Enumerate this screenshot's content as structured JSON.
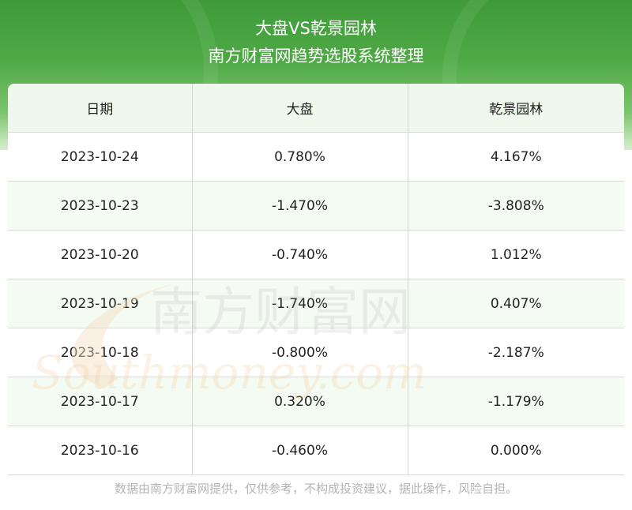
{
  "header": {
    "title": "大盘VS乾景园林",
    "subtitle": "南方财富网趋势选股系统整理"
  },
  "watermark": {
    "cn": "南方财富网",
    "en": "Southmoney.com"
  },
  "footer": "数据由南方财富网提供，仅供参考，不构成投资建议，据此操作，风险自担。",
  "chart_data": {
    "type": "table",
    "columns": [
      "日期",
      "大盘",
      "乾景园林"
    ],
    "rows": [
      [
        "2023-10-24",
        "0.780%",
        "4.167%"
      ],
      [
        "2023-10-23",
        "-1.470%",
        "-3.808%"
      ],
      [
        "2023-10-20",
        "-0.740%",
        "1.012%"
      ],
      [
        "2023-10-19",
        "-1.740%",
        "0.407%"
      ],
      [
        "2023-10-18",
        "-0.800%",
        "-2.187%"
      ],
      [
        "2023-10-17",
        "0.320%",
        "-1.179%"
      ],
      [
        "2023-10-16",
        "-0.460%",
        "0.000%"
      ]
    ]
  }
}
